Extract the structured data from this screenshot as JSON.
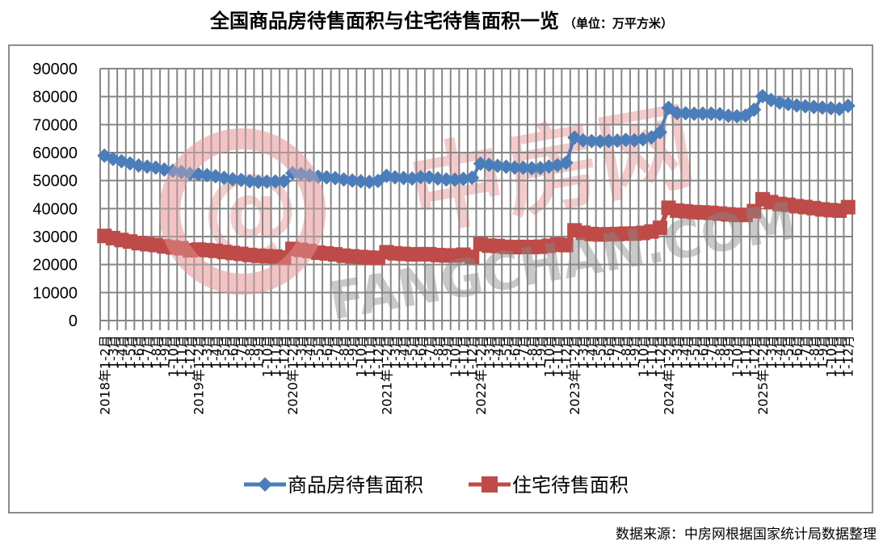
{
  "title": {
    "main": "全国商品房待售面积与住宅待售面积一览",
    "unit": "（单位：万平方米）"
  },
  "source": "数据来源：中房网根据国家统计局数据整理",
  "watermark": {
    "cn": "中房网",
    "en": "FANGCHAN.COM"
  },
  "colors": {
    "series1": "#4a7ebb",
    "series2": "#be4b48",
    "grid": "#868686",
    "frame": "#8c8c8c"
  },
  "chart_data": {
    "type": "line",
    "title": "全国商品房待售面积与住宅待售面积一览（单位：万平方米）",
    "xlabel": "",
    "ylabel": "",
    "ylim": [
      0,
      90000
    ],
    "yticks": [
      0,
      10000,
      20000,
      30000,
      40000,
      50000,
      60000,
      70000,
      80000,
      90000
    ],
    "grid": true,
    "legend_position": "bottom",
    "year_labels": [
      "2018年",
      "2019年",
      "2020年",
      "2021年",
      "2022年",
      "2023年",
      "2024年",
      "2025年"
    ],
    "period_labels": [
      "1-2月",
      "1-3月",
      "1-4月",
      "1-5月",
      "1-6月",
      "1-7月",
      "1-8月",
      "1-9月",
      "1-10月",
      "1-11月",
      "1-12月"
    ],
    "series": [
      {
        "name": "商品房待售面积",
        "marker": "diamond",
        "values": [
          58923,
          57712,
          56926,
          56128,
          55369,
          54990,
          54622,
          53931,
          53495,
          53045,
          52414,
          52230,
          51955,
          51578,
          50990,
          50474,
          50215,
          49767,
          49597,
          49612,
          49696,
          49821,
          52630,
          52358,
          51861,
          51371,
          51177,
          50866,
          50407,
          49996,
          49774,
          49557,
          49850,
          51697,
          51149,
          50899,
          50748,
          51230,
          51181,
          50734,
          50364,
          50350,
          50612,
          51023,
          56082,
          55626,
          55265,
          54950,
          54658,
          54579,
          54398,
          54487,
          55019,
          55475,
          56366,
          65384,
          64379,
          64121,
          64000,
          64159,
          64244,
          64535,
          64393,
          64745,
          65436,
          67295,
          75969,
          74138,
          74062,
          73894,
          73907,
          73926,
          73730,
          73177,
          72997,
          73221,
          75327,
          80168,
          78792,
          77845,
          77350,
          76844,
          76562,
          76301,
          76064,
          75858,
          75600,
          76700
        ]
      },
      {
        "name": "住宅待售面积",
        "marker": "square",
        "values": [
          30221,
          29447,
          28761,
          28230,
          27647,
          27270,
          26950,
          26477,
          26132,
          25817,
          25091,
          25353,
          25152,
          24901,
          24488,
          24137,
          23810,
          23420,
          23145,
          22989,
          22852,
          22473,
          25587,
          25226,
          24815,
          24250,
          23962,
          23649,
          23170,
          22924,
          22703,
          22477,
          22379,
          24395,
          23998,
          23818,
          23630,
          23685,
          23694,
          23389,
          23249,
          23246,
          23510,
          22761,
          27234,
          26758,
          26632,
          26314,
          26232,
          26301,
          26254,
          26361,
          26689,
          27113,
          26947,
          32208,
          31357,
          30909,
          30741,
          30827,
          30908,
          31047,
          31070,
          31307,
          31816,
          33119,
          40286,
          39271,
          39030,
          38733,
          38611,
          38460,
          38203,
          37937,
          37725,
          37731,
          39088,
          43320,
          42301,
          41641,
          41345,
          40848,
          40548,
          40159,
          39700,
          39439,
          39270,
          40500
        ]
      }
    ]
  }
}
